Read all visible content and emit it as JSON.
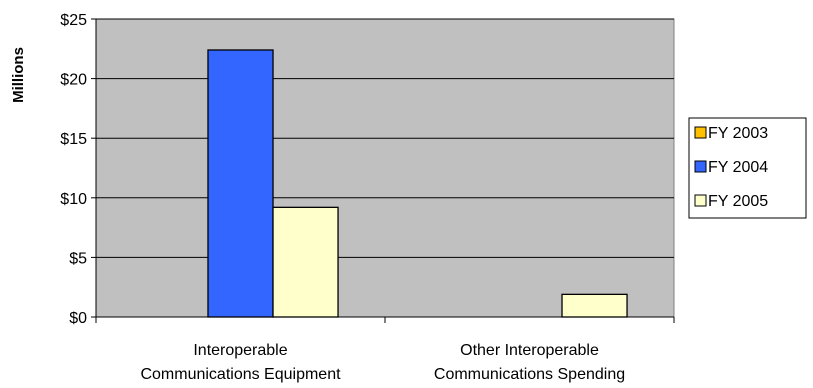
{
  "chart_data": {
    "type": "bar",
    "title": "",
    "xlabel": "",
    "ylabel": "Millions",
    "ylim": [
      0,
      25
    ],
    "yticks": [
      0,
      5,
      10,
      15,
      20,
      25
    ],
    "ytick_labels": [
      "$0",
      "$5",
      "$10",
      "$15",
      "$20",
      "$25"
    ],
    "categories": [
      [
        "Interoperable",
        "Communications Equipment"
      ],
      [
        "Other Interoperable",
        "Communications Spending"
      ]
    ],
    "series": [
      {
        "name": "FY 2003",
        "color": "#ffc000",
        "values": [
          0,
          0
        ]
      },
      {
        "name": "FY 2004",
        "color": "#3366ff",
        "values": [
          22.4,
          0
        ]
      },
      {
        "name": "FY 2005",
        "color": "#ffffcc",
        "values": [
          9.2,
          1.9
        ]
      }
    ],
    "plot_background": "#c0c0c0",
    "grid": true,
    "legend_position": "right"
  }
}
